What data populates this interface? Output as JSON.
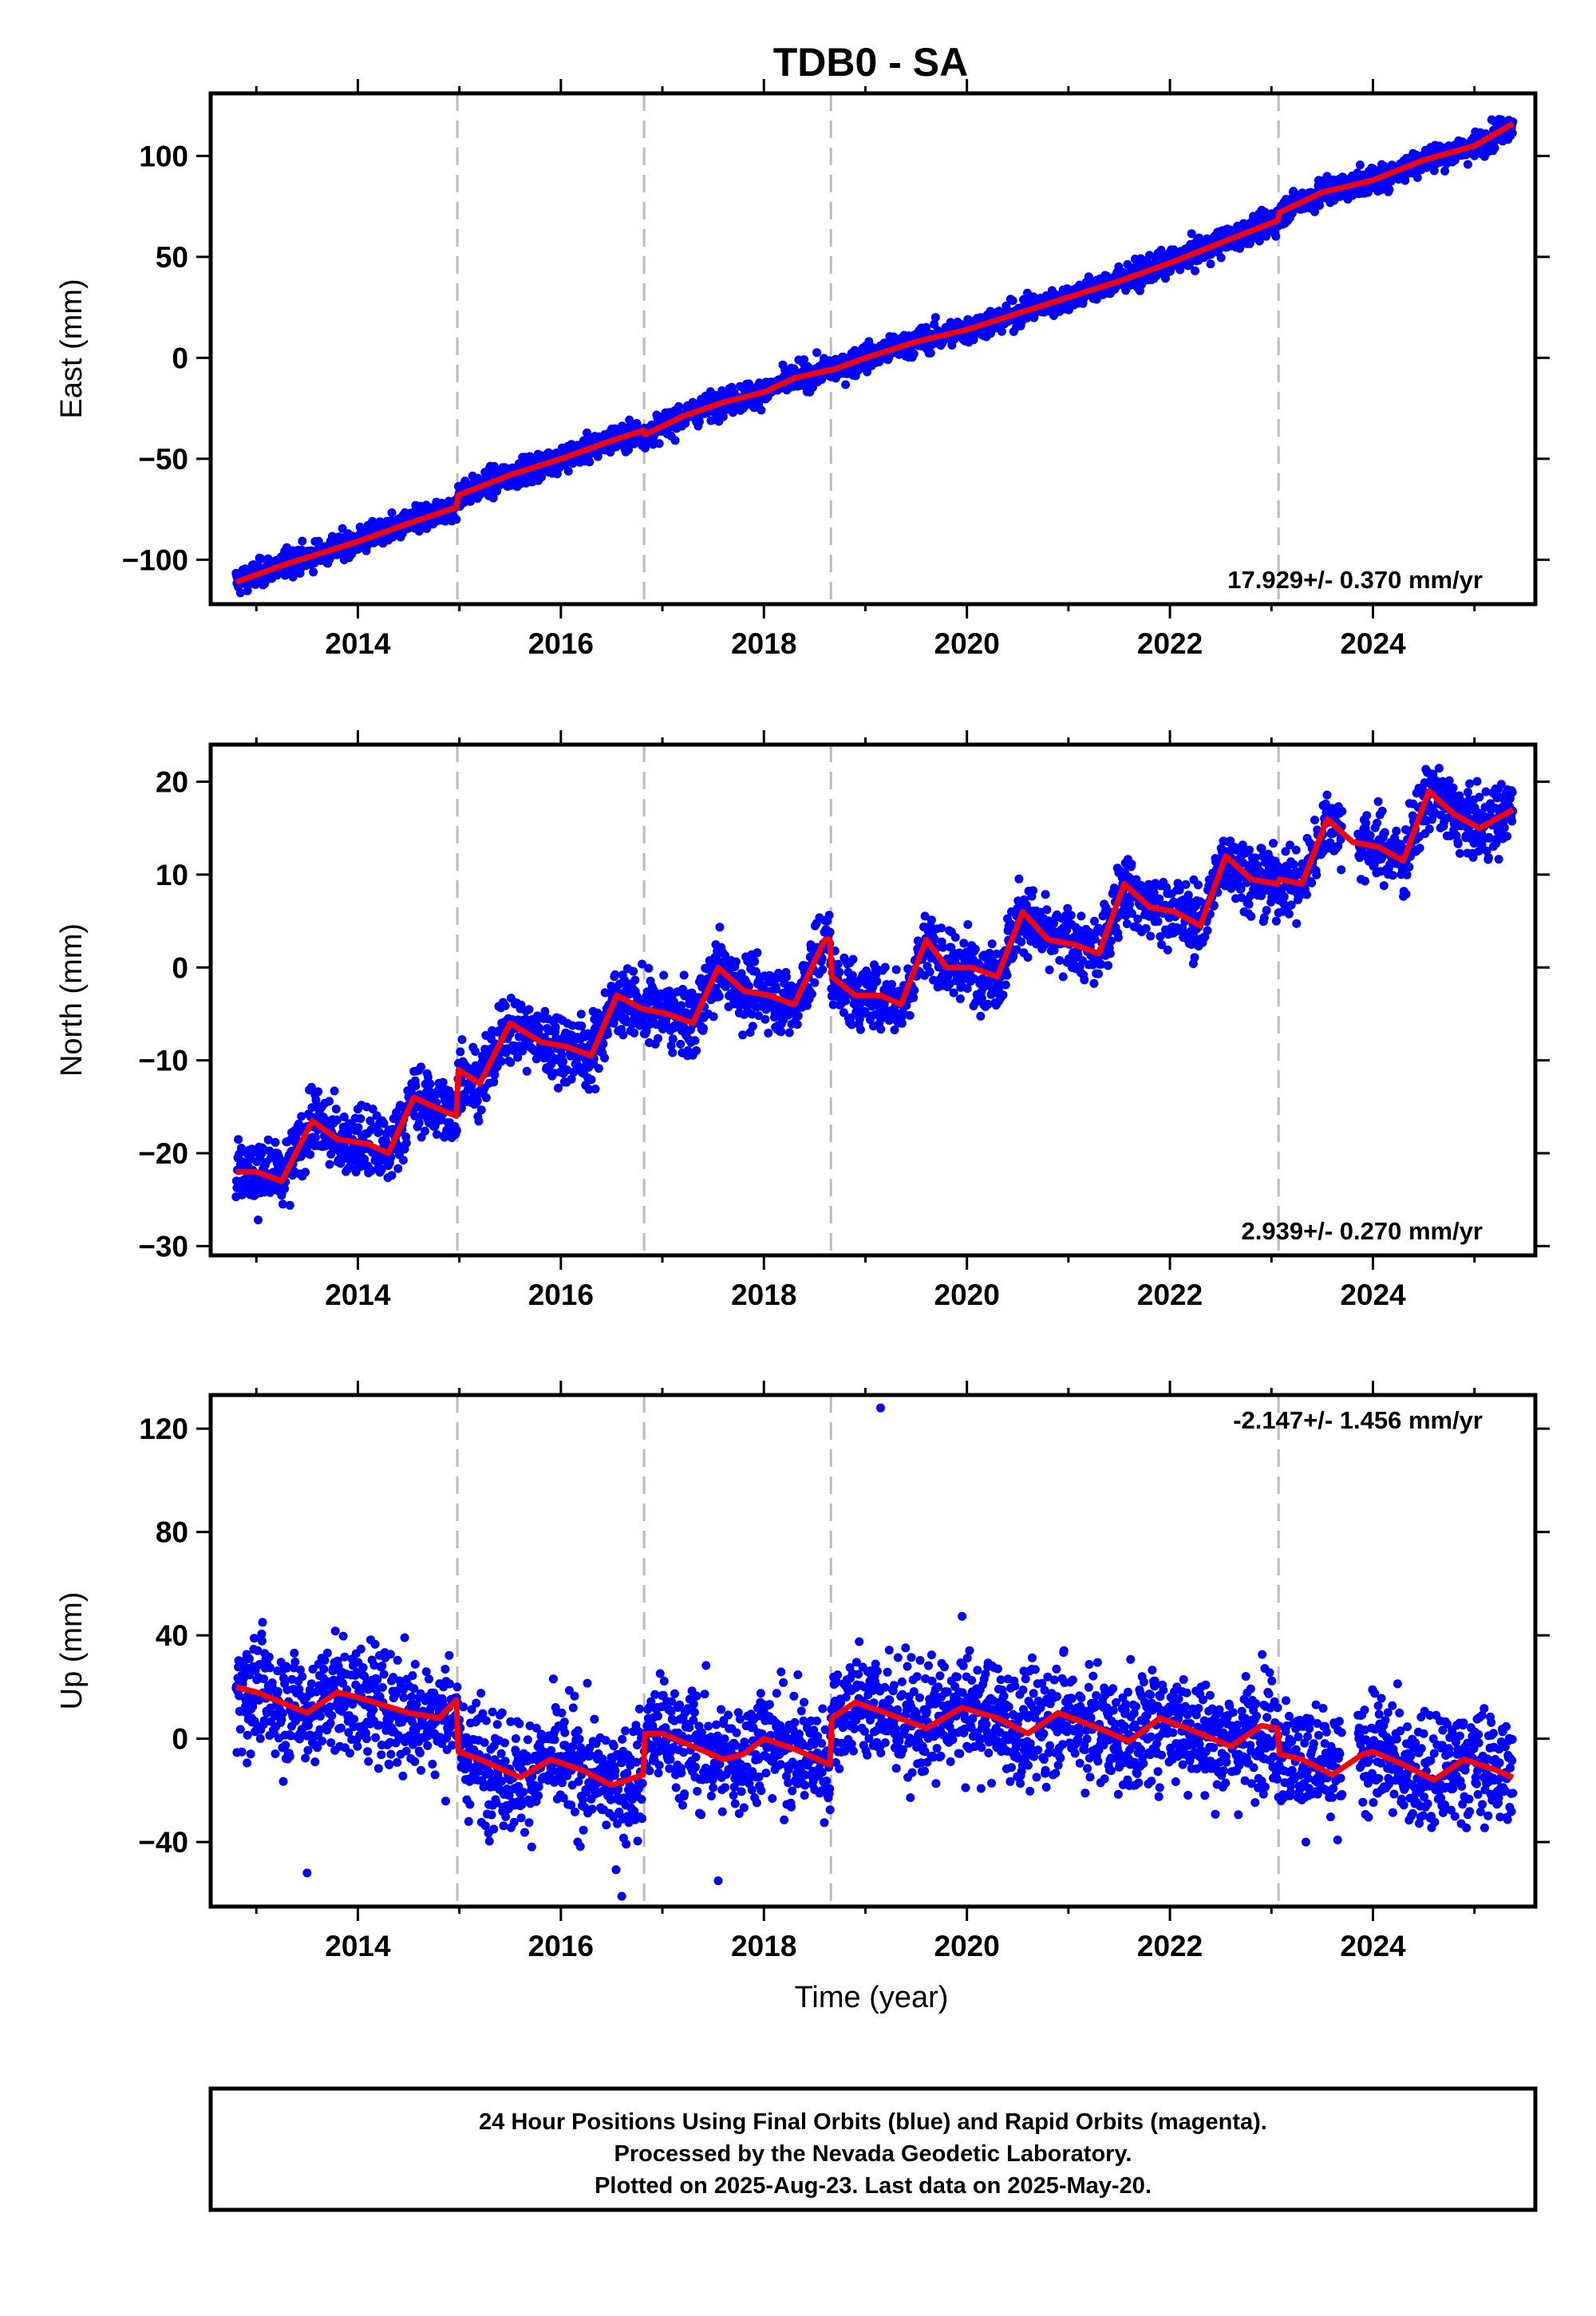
{
  "figure": {
    "title": "TDB0 - SA",
    "xlabel": "Time (year)",
    "footer": [
      "24 Hour Positions Using Final Orbits (blue) and Rapid Orbits (magenta).",
      "Processed by the Nevada Geodetic Laboratory.",
      "Plotted on 2025-Aug-23. Last data on 2025-May-20."
    ]
  },
  "colors": {
    "points": "#0000ff",
    "model": "#ff0000",
    "breaks": "#bbbbbb",
    "frame": "#000000"
  },
  "chart_data": [
    {
      "type": "scatter",
      "name": "east",
      "ylabel": "East (mm)",
      "rate_label": "17.929+/- 0.370 mm/yr",
      "xlim": [
        2012.55,
        2025.6
      ],
      "ylim": [
        -122,
        131
      ],
      "xticks": [
        2014,
        2016,
        2018,
        2020,
        2022,
        2024
      ],
      "yticks": [
        -100,
        -50,
        0,
        50,
        100
      ],
      "breaks": [
        2014.98,
        2016.82,
        2018.66,
        2023.07
      ],
      "data_start": 2012.8,
      "data_end": 2025.38,
      "series": [
        {
          "name": "model",
          "x": [
            2012.8,
            2013.3,
            2014.0,
            2014.5,
            2014.97,
            2014.99,
            2015.5,
            2016.0,
            2016.5,
            2016.81,
            2016.83,
            2017.2,
            2017.6,
            2018.0,
            2018.3,
            2018.65,
            2018.67,
            2019.0,
            2019.5,
            2020.0,
            2020.5,
            2021.0,
            2021.5,
            2022.0,
            2022.5,
            2023.06,
            2023.08,
            2023.5,
            2024.0,
            2024.5,
            2025.0,
            2025.38
          ],
          "values": [
            -111,
            -102,
            -91,
            -82,
            -74,
            -68,
            -58,
            -50,
            -41,
            -36,
            -38,
            -29,
            -22,
            -17,
            -10,
            -6,
            -6,
            0,
            8,
            14,
            22,
            30,
            38,
            47,
            57,
            68,
            72,
            82,
            88,
            98,
            105,
            116
          ]
        }
      ]
    },
    {
      "type": "scatter",
      "name": "north",
      "ylabel": "North (mm)",
      "rate_label": "2.939+/- 0.270 mm/yr",
      "xlim": [
        2012.55,
        2025.6
      ],
      "ylim": [
        -31,
        24
      ],
      "xticks": [
        2014,
        2016,
        2018,
        2020,
        2022,
        2024
      ],
      "yticks": [
        -30,
        -20,
        -10,
        0,
        10,
        20
      ],
      "breaks": [
        2014.98,
        2016.82,
        2018.66,
        2023.07
      ],
      "data_start": 2012.8,
      "data_end": 2025.38,
      "series": [
        {
          "name": "model",
          "x": [
            2012.8,
            2013.0,
            2013.25,
            2013.55,
            2013.8,
            2014.1,
            2014.3,
            2014.55,
            2014.75,
            2014.97,
            2014.99,
            2015.2,
            2015.5,
            2015.8,
            2016.05,
            2016.3,
            2016.55,
            2016.81,
            2016.83,
            2017.05,
            2017.3,
            2017.55,
            2017.8,
            2018.05,
            2018.3,
            2018.6,
            2018.65,
            2018.67,
            2018.9,
            2019.15,
            2019.35,
            2019.6,
            2019.8,
            2020.05,
            2020.3,
            2020.55,
            2020.8,
            2021.05,
            2021.3,
            2021.55,
            2021.8,
            2022.05,
            2022.3,
            2022.55,
            2022.8,
            2023.06,
            2023.08,
            2023.3,
            2023.55,
            2023.8,
            2024.05,
            2024.3,
            2024.55,
            2024.8,
            2025.05,
            2025.38
          ],
          "values": [
            -22,
            -22,
            -23,
            -16.5,
            -18.5,
            -19,
            -20,
            -14,
            -15,
            -16,
            -11,
            -12.5,
            -6,
            -8,
            -8.5,
            -9.5,
            -3,
            -4.5,
            -4.5,
            -5,
            -6,
            0,
            -2.5,
            -3,
            -4,
            3,
            3,
            -1,
            -3,
            -3,
            -4,
            3,
            0,
            0,
            -1,
            6,
            3,
            2.5,
            1.5,
            9,
            6.5,
            6,
            4.5,
            12,
            9.5,
            9,
            9.5,
            9,
            16,
            13.5,
            13,
            11.5,
            19,
            16.5,
            15,
            17
          ]
        }
      ]
    },
    {
      "type": "scatter",
      "name": "up",
      "ylabel": "Up (mm)",
      "rate_label": "-2.147+/- 1.456 mm/yr",
      "xlim": [
        2012.55,
        2025.6
      ],
      "ylim": [
        -65,
        133
      ],
      "xticks": [
        2014,
        2016,
        2018,
        2020,
        2022,
        2024
      ],
      "yticks": [
        -40,
        0,
        40,
        80,
        120
      ],
      "breaks": [
        2014.98,
        2016.82,
        2018.66,
        2023.07
      ],
      "data_start": 2012.8,
      "data_end": 2025.38,
      "series": [
        {
          "name": "model",
          "x": [
            2012.8,
            2013.0,
            2013.5,
            2013.8,
            2014.0,
            2014.5,
            2014.8,
            2014.97,
            2014.99,
            2015.2,
            2015.6,
            2015.9,
            2016.2,
            2016.5,
            2016.81,
            2016.83,
            2017.0,
            2017.3,
            2017.6,
            2017.8,
            2018.0,
            2018.3,
            2018.65,
            2018.67,
            2018.9,
            2019.2,
            2019.6,
            2019.95,
            2020.3,
            2020.6,
            2020.9,
            2021.3,
            2021.6,
            2021.9,
            2022.3,
            2022.6,
            2022.9,
            2023.06,
            2023.08,
            2023.3,
            2023.6,
            2023.9,
            2024.0,
            2024.3,
            2024.6,
            2024.9,
            2025.2,
            2025.38
          ],
          "values": [
            20,
            18,
            10,
            18,
            16,
            10,
            8,
            15,
            -5,
            -8,
            -15,
            -8,
            -12,
            -18,
            -14,
            2,
            2,
            -3,
            -8,
            -6,
            0,
            -4,
            -10,
            8,
            14,
            10,
            4,
            12,
            8,
            2,
            10,
            4,
            -1,
            8,
            2,
            -3,
            5,
            4,
            -6,
            -8,
            -14,
            -6,
            -5,
            -10,
            -16,
            -8,
            -12,
            -15
          ]
        },
        {
          "name": "outliers",
          "x": [
            2019.15,
            2013.5,
            2016.6,
            2017.55
          ],
          "values": [
            128,
            -52,
            -61,
            -55
          ]
        }
      ]
    }
  ]
}
